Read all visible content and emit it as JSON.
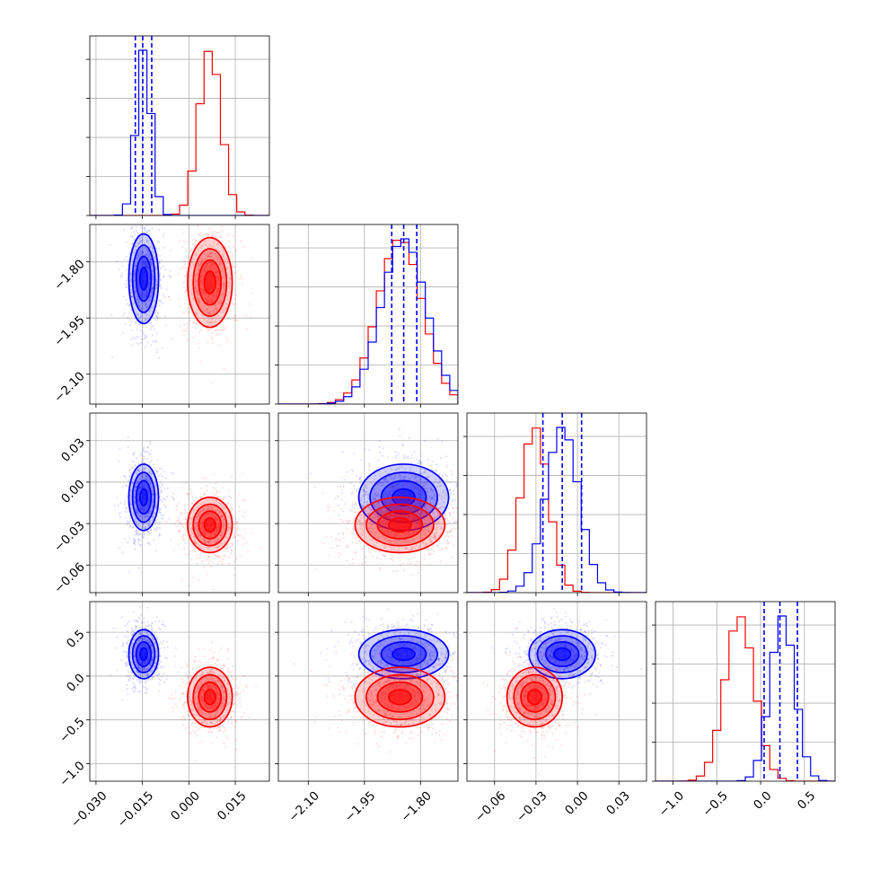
{
  "chart_data": {
    "type": "scatter",
    "grid": true,
    "series": [
      {
        "color": "#0000ff",
        "means": [
          -0.0146,
          -1.845,
          -0.011,
          0.25
        ],
        "stds": [
          0.0024,
          0.06,
          0.012,
          0.14
        ],
        "quantiles": [
          [
            -0.0173,
            -0.0149,
            -0.012
          ],
          [
            -1.877,
            -1.845,
            -1.81
          ],
          [
            -0.025,
            -0.011,
            0.003
          ],
          [
            0.04,
            0.22,
            0.42
          ]
        ]
      },
      {
        "color": "#ff0000",
        "means": [
          0.0068,
          -1.855,
          -0.031,
          -0.24
        ],
        "stds": [
          0.0036,
          0.06,
          0.01,
          0.17
        ]
      }
    ],
    "params": [
      {
        "range": [
          -0.032,
          0.026
        ],
        "ticks": [
          -0.03,
          -0.015,
          0.0,
          0.015
        ],
        "ticklabels": [
          "−0.030",
          "−0.015",
          "0.000",
          "0.015"
        ]
      },
      {
        "range": [
          -2.18,
          -1.7
        ],
        "ticks": [
          -2.1,
          -1.95,
          -1.8
        ],
        "ticklabels": [
          "−2.10",
          "−1.95",
          "−1.80"
        ]
      },
      {
        "range": [
          -0.08,
          0.05
        ],
        "ticks": [
          -0.06,
          -0.03,
          0.0,
          0.03
        ],
        "ticklabels": [
          "−0.06",
          "−0.03",
          "0.00",
          "0.03"
        ]
      },
      {
        "range": [
          -1.2,
          0.85
        ],
        "ticks": [
          -1.0,
          -0.5,
          0.0,
          0.5
        ],
        "ticklabels": [
          "−1.0",
          "−0.5",
          "0.0",
          "0.5"
        ]
      }
    ],
    "row_ticks": {
      "1": {
        "ticks": [
          -1.8,
          -1.95,
          -2.1
        ],
        "ticklabels": [
          "−1.80",
          "−1.95",
          "−2.10"
        ]
      },
      "2": {
        "ticks": [
          0.03,
          0.0,
          -0.03,
          -0.06
        ],
        "ticklabels": [
          "0.03",
          "0.00",
          "−0.03",
          "−0.06"
        ]
      },
      "3": {
        "ticks": [
          0.5,
          0.0,
          -0.5,
          -1.0
        ],
        "ticklabels": [
          "0.5",
          "0.0",
          "−0.5",
          "−1.0"
        ]
      }
    }
  }
}
